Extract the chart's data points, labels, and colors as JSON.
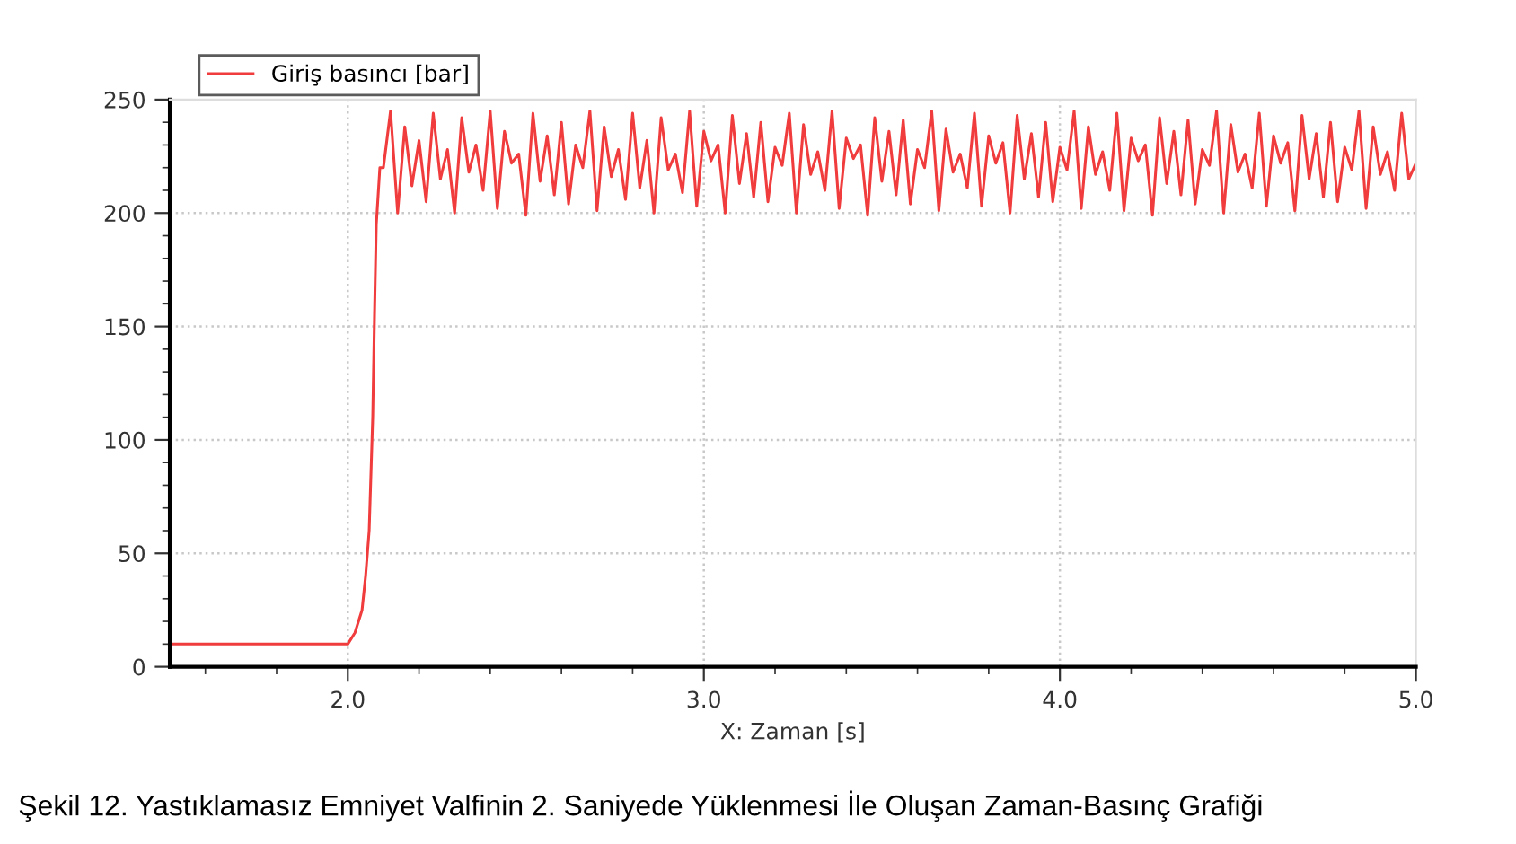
{
  "chart_data": {
    "type": "line",
    "xlabel": "X: Zaman [s]",
    "annotations": [
      "Şekil 12. Yastıklamasız Emniyet Valfinin 2. Saniyede Yüklenmesi İle Oluşan Zaman-Basınç Grafiği"
    ],
    "xlim": [
      1.5,
      5.0
    ],
    "ylim": [
      0,
      250
    ],
    "xticks": [
      {
        "value": 2,
        "label": "2.0"
      },
      {
        "value": 3,
        "label": "3.0"
      },
      {
        "value": 4,
        "label": "4.0"
      },
      {
        "value": 5,
        "label": "5.0"
      }
    ],
    "yticks": [
      0,
      50,
      100,
      150,
      200,
      250
    ],
    "grid": true,
    "legend": "top left",
    "marker": "none",
    "line_style": "solid",
    "series": [
      {
        "name": "Giriş basıncı [bar]",
        "color": "#f03c3c",
        "x": [
          1.5,
          2.0,
          2.02,
          2.04,
          2.05,
          2.06,
          2.07,
          2.075,
          2.08,
          2.09,
          2.1,
          2.12,
          2.14,
          2.16,
          2.18,
          2.2,
          2.22,
          2.24,
          2.26,
          2.28,
          2.3,
          2.32,
          2.34,
          2.36,
          2.38,
          2.4,
          2.42,
          2.44,
          2.46,
          2.48,
          2.5,
          2.52,
          2.54,
          2.56,
          2.58,
          2.6,
          2.62,
          2.64,
          2.66,
          2.68,
          2.7,
          2.72,
          2.74,
          2.76,
          2.78,
          2.8,
          2.82,
          2.84,
          2.86,
          2.88,
          2.9,
          2.92,
          2.94,
          2.96,
          2.98,
          3.0,
          3.02,
          3.04,
          3.06,
          3.08,
          3.1,
          3.12,
          3.14,
          3.16,
          3.18,
          3.2,
          3.22,
          3.24,
          3.26,
          3.28,
          3.3,
          3.32,
          3.34,
          3.36,
          3.38,
          3.4,
          3.42,
          3.44,
          3.46,
          3.48,
          3.5,
          3.52,
          3.54,
          3.56,
          3.58,
          3.6,
          3.62,
          3.64,
          3.66,
          3.68,
          3.7,
          3.72,
          3.74,
          3.76,
          3.78,
          3.8,
          3.82,
          3.84,
          3.86,
          3.88,
          3.9,
          3.92,
          3.94,
          3.96,
          3.98,
          4.0,
          4.02,
          4.04,
          4.06,
          4.08,
          4.1,
          4.12,
          4.14,
          4.16,
          4.18,
          4.2,
          4.22,
          4.24,
          4.26,
          4.28,
          4.3,
          4.32,
          4.34,
          4.36,
          4.38,
          4.4,
          4.42,
          4.44,
          4.46,
          4.48,
          4.5,
          4.52,
          4.54,
          4.56,
          4.58,
          4.6,
          4.62,
          4.64,
          4.66,
          4.68,
          4.7,
          4.72,
          4.74,
          4.76,
          4.78,
          4.8,
          4.82,
          4.84,
          4.86,
          4.88,
          4.9,
          4.92,
          4.94,
          4.96,
          4.98,
          5.0
        ],
        "values": [
          10,
          10,
          15,
          25,
          40,
          60,
          110,
          155,
          195,
          220,
          220,
          245,
          200,
          238,
          212,
          232,
          205,
          244,
          215,
          228,
          200,
          242,
          218,
          230,
          210,
          245,
          202,
          236,
          222,
          226,
          199,
          244,
          214,
          234,
          208,
          240,
          204,
          230,
          220,
          245,
          201,
          238,
          216,
          228,
          206,
          244,
          211,
          232,
          200,
          242,
          219,
          226,
          209,
          245,
          203,
          236,
          223,
          230,
          200,
          243,
          213,
          235,
          207,
          240,
          205,
          229,
          221,
          244,
          200,
          239,
          217,
          227,
          210,
          245,
          202,
          233,
          224,
          230,
          199,
          242,
          214,
          236,
          208,
          241,
          204,
          228,
          220,
          245,
          201,
          237,
          218,
          226,
          211,
          244,
          203,
          234,
          222,
          231,
          200,
          243,
          215,
          235,
          207,
          240,
          205,
          229,
          219,
          245,
          202,
          238,
          217,
          227,
          210,
          244,
          201,
          233,
          223,
          230,
          199,
          242,
          213,
          236,
          208,
          241,
          204,
          228,
          221,
          245,
          200,
          239,
          218,
          226,
          211,
          244,
          203,
          234,
          222,
          231,
          201,
          243,
          215,
          235,
          207,
          240,
          205,
          229,
          219,
          245,
          202,
          238,
          217,
          227,
          210,
          244,
          215,
          222
        ]
      }
    ]
  }
}
